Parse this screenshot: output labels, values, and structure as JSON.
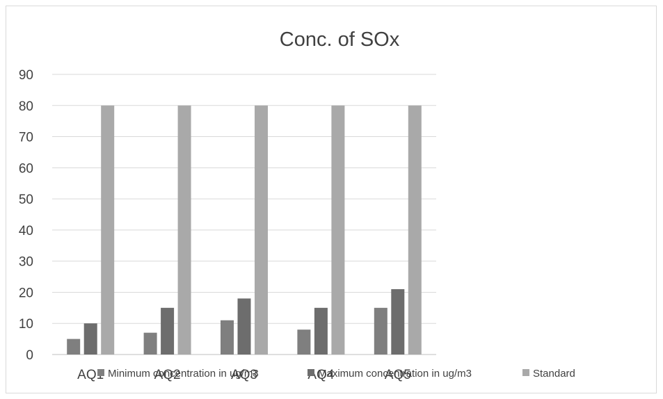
{
  "chart_data": {
    "type": "bar",
    "title": "Conc. of SOx",
    "categories": [
      "AQ1",
      "AQ2",
      "AQ3",
      "AQ4",
      "AQ5"
    ],
    "ylim": [
      0,
      90
    ],
    "yticks": [
      0,
      10,
      20,
      30,
      40,
      50,
      60,
      70,
      80,
      90
    ],
    "grid": true,
    "legend_position": "bottom",
    "series": [
      {
        "name": "Minimum concentration in ug/m3",
        "values": [
          5,
          7,
          11,
          8,
          15
        ],
        "color": "#7f7f7f"
      },
      {
        "name": "Maximum concentration in ug/m3",
        "values": [
          10,
          15,
          18,
          15,
          21
        ],
        "color": "#6d6d6d"
      },
      {
        "name": "Standard",
        "values": [
          80,
          80,
          80,
          80,
          80
        ],
        "color": "#a9a9a9"
      }
    ]
  }
}
